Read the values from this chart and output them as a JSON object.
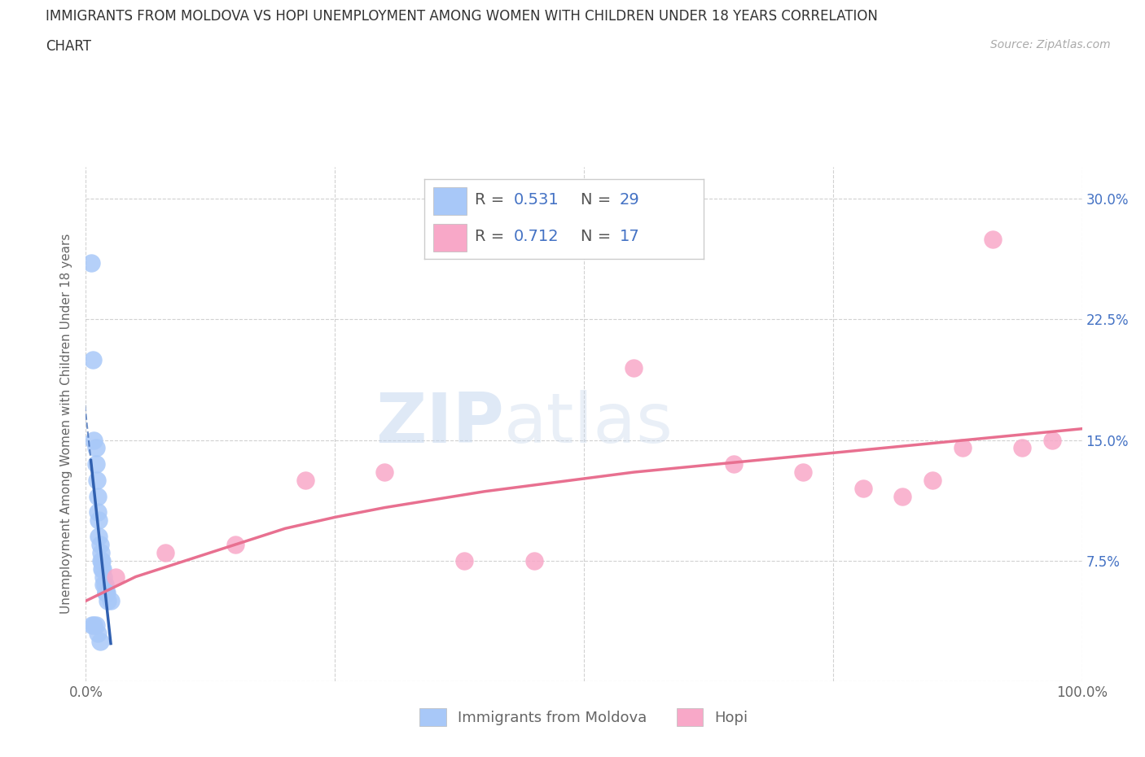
{
  "title_line1": "IMMIGRANTS FROM MOLDOVA VS HOPI UNEMPLOYMENT AMONG WOMEN WITH CHILDREN UNDER 18 YEARS CORRELATION",
  "title_line2": "CHART",
  "source": "Source: ZipAtlas.com",
  "ylabel": "Unemployment Among Women with Children Under 18 years",
  "xlim": [
    0,
    100
  ],
  "ylim": [
    0,
    32
  ],
  "xtick_positions": [
    0,
    25,
    50,
    75,
    100
  ],
  "xticklabels": [
    "0.0%",
    "",
    "",
    "",
    "100.0%"
  ],
  "ytick_positions": [
    0,
    7.5,
    15.0,
    22.5,
    30.0
  ],
  "yticklabels_right": [
    "",
    "7.5%",
    "15.0%",
    "22.5%",
    "30.0%"
  ],
  "r_moldova": 0.531,
  "n_moldova": 29,
  "r_hopi": 0.712,
  "n_hopi": 17,
  "moldova_color": "#a8c8f8",
  "hopi_color": "#f8a8c8",
  "moldova_line_color": "#3060b0",
  "hopi_line_color": "#e87090",
  "accent_color": "#4472c4",
  "background_color": "#ffffff",
  "watermark_zip": "ZIP",
  "watermark_atlas": "atlas",
  "moldova_x": [
    0.5,
    0.7,
    0.8,
    1.0,
    1.0,
    1.1,
    1.2,
    1.2,
    1.3,
    1.3,
    1.4,
    1.5,
    1.5,
    1.6,
    1.6,
    1.7,
    1.8,
    1.8,
    1.9,
    2.0,
    2.0,
    2.1,
    2.2,
    2.5,
    0.6,
    0.8,
    1.0,
    1.2,
    1.4
  ],
  "moldova_y": [
    26.0,
    20.0,
    15.0,
    14.5,
    13.5,
    12.5,
    11.5,
    10.5,
    10.0,
    9.0,
    8.5,
    8.0,
    7.5,
    7.5,
    7.0,
    7.0,
    6.5,
    6.0,
    6.0,
    5.5,
    5.5,
    5.5,
    5.0,
    5.0,
    3.5,
    3.5,
    3.5,
    3.0,
    2.5
  ],
  "hopi_x": [
    3.0,
    8.0,
    15.0,
    22.0,
    30.0,
    38.0,
    45.0,
    55.0,
    65.0,
    72.0,
    78.0,
    82.0,
    85.0,
    88.0,
    91.0,
    94.0,
    97.0
  ],
  "hopi_y": [
    6.5,
    8.0,
    8.5,
    12.5,
    13.0,
    7.5,
    7.5,
    19.5,
    13.5,
    13.0,
    12.0,
    11.5,
    12.5,
    14.5,
    27.5,
    14.5,
    15.0
  ],
  "hopi_regr_x": [
    0,
    5,
    10,
    15,
    20,
    25,
    30,
    35,
    40,
    45,
    50,
    55,
    60,
    65,
    70,
    75,
    80,
    85,
    90,
    95,
    100
  ],
  "hopi_regr_y": [
    5.0,
    6.5,
    7.5,
    8.5,
    9.5,
    10.2,
    10.8,
    11.3,
    11.8,
    12.2,
    12.6,
    13.0,
    13.3,
    13.6,
    13.9,
    14.2,
    14.5,
    14.8,
    15.1,
    15.4,
    15.7
  ],
  "figsize": [
    14.06,
    9.3
  ],
  "dpi": 100
}
